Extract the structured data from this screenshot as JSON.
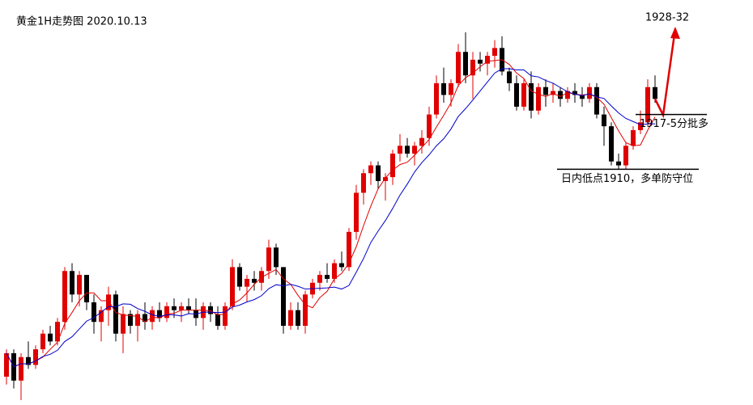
{
  "chart_data": {
    "type": "candlestick",
    "title": "黄金1H走势图 2020.10.13",
    "up_color": "#e00000",
    "down_color": "#000000",
    "moving_averages": [
      {
        "period": 5,
        "color": "#e00000"
      },
      {
        "period": 10,
        "color": "#0000cc"
      }
    ],
    "candles": [
      [
        1883.5,
        1887,
        1882.5,
        1886.5
      ],
      [
        1886.5,
        1887,
        1882,
        1883
      ],
      [
        1883,
        1886.5,
        1880.5,
        1886
      ],
      [
        1886,
        1888,
        1884.5,
        1885
      ],
      [
        1885,
        1887.5,
        1884.5,
        1887
      ],
      [
        1887,
        1889.5,
        1886.5,
        1889
      ],
      [
        1889,
        1890,
        1887.5,
        1888
      ],
      [
        1888,
        1891,
        1887.5,
        1890.5
      ],
      [
        1890.5,
        1897.5,
        1889.5,
        1897
      ],
      [
        1897,
        1898,
        1893,
        1894
      ],
      [
        1894,
        1897,
        1892.5,
        1896.5
      ],
      [
        1896.5,
        1896.5,
        1892,
        1893
      ],
      [
        1893,
        1894,
        1889,
        1890.5
      ],
      [
        1890.5,
        1892.5,
        1888,
        1892
      ],
      [
        1892,
        1895,
        1890,
        1894
      ],
      [
        1894,
        1894.5,
        1888,
        1889
      ],
      [
        1889,
        1892.5,
        1886.5,
        1891.5
      ],
      [
        1891.5,
        1892,
        1889,
        1890
      ],
      [
        1890,
        1892,
        1888,
        1891.5
      ],
      [
        1891.5,
        1893,
        1889.5,
        1890.5
      ],
      [
        1890.5,
        1892.5,
        1889.5,
        1892
      ],
      [
        1892,
        1893,
        1890.5,
        1891
      ],
      [
        1891,
        1893,
        1890.5,
        1892.5
      ],
      [
        1892.5,
        1893.5,
        1891,
        1892
      ],
      [
        1892,
        1893,
        1890.5,
        1892.5
      ],
      [
        1892.5,
        1893.5,
        1891.5,
        1892
      ],
      [
        1892,
        1893.5,
        1890,
        1891
      ],
      [
        1891,
        1893,
        1889.5,
        1892.5
      ],
      [
        1892.5,
        1893,
        1890.5,
        1891.5
      ],
      [
        1891.5,
        1892.5,
        1889.5,
        1890
      ],
      [
        1890,
        1893,
        1889.5,
        1892.5
      ],
      [
        1892.5,
        1898.5,
        1892,
        1897.5
      ],
      [
        1897.5,
        1898,
        1894.5,
        1895
      ],
      [
        1895,
        1896.5,
        1893,
        1896
      ],
      [
        1896,
        1897,
        1894.5,
        1895.5
      ],
      [
        1895.5,
        1897.5,
        1894.5,
        1897
      ],
      [
        1897,
        1901,
        1896,
        1900
      ],
      [
        1900,
        1900.5,
        1896.5,
        1897.5
      ],
      [
        1897.5,
        1897.5,
        1889,
        1890
      ],
      [
        1890,
        1893,
        1889.5,
        1892
      ],
      [
        1892,
        1893,
        1889.5,
        1890
      ],
      [
        1890,
        1894.5,
        1889,
        1894
      ],
      [
        1894,
        1896,
        1893.5,
        1895.5
      ],
      [
        1895.5,
        1897,
        1894.5,
        1896.5
      ],
      [
        1896.5,
        1898,
        1895.5,
        1896
      ],
      [
        1896,
        1898.5,
        1895.5,
        1898
      ],
      [
        1898,
        1899.5,
        1897,
        1897.5
      ],
      [
        1897.5,
        1902.5,
        1897,
        1902
      ],
      [
        1902,
        1908,
        1901,
        1907
      ],
      [
        1907,
        1910,
        1905.5,
        1909.5
      ],
      [
        1909.5,
        1911,
        1908,
        1910.5
      ],
      [
        1910.5,
        1911,
        1907.5,
        1908.5
      ],
      [
        1908.5,
        1909.5,
        1906,
        1909
      ],
      [
        1909,
        1912.5,
        1908,
        1912
      ],
      [
        1912,
        1914.5,
        1911,
        1913
      ],
      [
        1913,
        1914,
        1911.5,
        1912
      ],
      [
        1912,
        1913.5,
        1910.5,
        1913
      ],
      [
        1913,
        1915,
        1912,
        1914
      ],
      [
        1914,
        1918,
        1913,
        1917
      ],
      [
        1917,
        1922,
        1916.5,
        1921
      ],
      [
        1921,
        1923,
        1918.5,
        1919.5
      ],
      [
        1919.5,
        1921.5,
        1918,
        1921
      ],
      [
        1921,
        1926,
        1920.5,
        1925
      ],
      [
        1925,
        1927.5,
        1921,
        1922
      ],
      [
        1922,
        1925,
        1919,
        1924
      ],
      [
        1924,
        1925,
        1922.5,
        1923.5
      ],
      [
        1923.5,
        1925,
        1922,
        1924.5
      ],
      [
        1924.5,
        1926.5,
        1923,
        1925.5
      ],
      [
        1925.5,
        1927,
        1922,
        1922.5
      ],
      [
        1922.5,
        1923,
        1920,
        1921
      ],
      [
        1921,
        1922,
        1917.5,
        1918
      ],
      [
        1918,
        1921.5,
        1917.5,
        1921
      ],
      [
        1921,
        1922.5,
        1916.5,
        1917.5
      ],
      [
        1917.5,
        1921,
        1917,
        1920.5
      ],
      [
        1920.5,
        1921.5,
        1918,
        1919.5
      ],
      [
        1919.5,
        1921,
        1918.5,
        1920
      ],
      [
        1920,
        1920.5,
        1918,
        1919
      ],
      [
        1919,
        1920.5,
        1918.5,
        1920
      ],
      [
        1920,
        1921,
        1918.5,
        1919.5
      ],
      [
        1919.5,
        1920.5,
        1918,
        1919
      ],
      [
        1919,
        1921,
        1918.5,
        1920.5
      ],
      [
        1920.5,
        1921,
        1916.5,
        1917
      ],
      [
        1917,
        1918,
        1913,
        1915.5
      ],
      [
        1915.5,
        1916,
        1910.5,
        1911
      ],
      [
        1911,
        1912,
        1910,
        1910.5
      ],
      [
        1910.5,
        1913.5,
        1910,
        1913
      ],
      [
        1913,
        1915.5,
        1912.5,
        1915
      ],
      [
        1915,
        1917.5,
        1914.5,
        1916
      ],
      [
        1916,
        1921.5,
        1915.5,
        1920.5
      ],
      [
        1920.5,
        1922,
        1918.5,
        1919
      ]
    ],
    "annotations": [
      {
        "text": "1928-32",
        "value": 1928,
        "kind": "target"
      },
      {
        "text": "1917-5分批多",
        "value": 1917,
        "kind": "level"
      },
      {
        "text": "日内低点1910，多单防守位",
        "value": 1910,
        "kind": "level"
      }
    ]
  }
}
